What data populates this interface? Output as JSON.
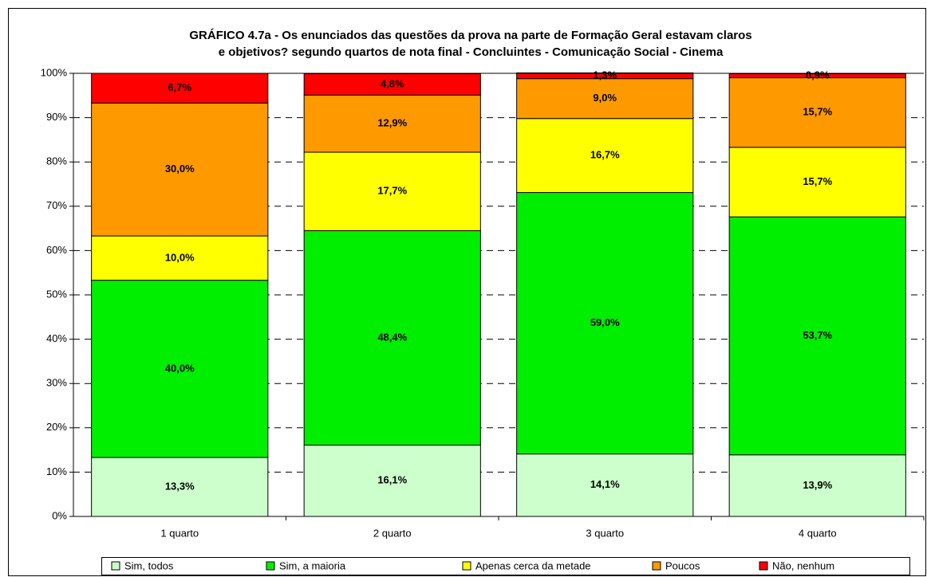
{
  "chart_data": {
    "type": "stacked_bar",
    "title": [
      "GRÁFICO 4.7a - Os enunciados das questões da prova na parte de Formação Geral estavam claros",
      "e objetivos? segundo quartos de nota final  - Concluintes - Comunicação Social - Cinema"
    ],
    "categories": [
      "1 quarto",
      "2 quarto",
      "3 quarto",
      "4 quarto"
    ],
    "series": [
      {
        "name": "Sim, todos",
        "color": "#ccffcc",
        "values": [
          13.3,
          16.1,
          14.1,
          13.9
        ],
        "value_labels": [
          "13,3%",
          "16,1%",
          "14,1%",
          "13,9%"
        ]
      },
      {
        "name": "Sim, a maioria",
        "color": "#00ee00",
        "values": [
          40.0,
          48.4,
          59.0,
          53.7
        ],
        "value_labels": [
          "40,0%",
          "48,4%",
          "59,0%",
          "53,7%"
        ]
      },
      {
        "name": "Apenas cerca da metade",
        "color": "#ffff00",
        "values": [
          10.0,
          17.7,
          16.7,
          15.7
        ],
        "value_labels": [
          "10,0%",
          "17,7%",
          "16,7%",
          "15,7%"
        ]
      },
      {
        "name": "Poucos",
        "color": "#ff9900",
        "values": [
          30.0,
          12.9,
          9.0,
          15.7
        ],
        "value_labels": [
          "30,0%",
          "12,9%",
          "9,0%",
          "15,7%"
        ]
      },
      {
        "name": "Não, nenhum",
        "color": "#ff0000",
        "values": [
          6.7,
          4.8,
          1.3,
          0.9
        ],
        "value_labels": [
          "6,7%",
          "4,8%",
          "1,3%",
          "0,9%"
        ]
      }
    ],
    "ylim": [
      0,
      100
    ],
    "yticks": [
      {
        "value": 0,
        "label": "0%"
      },
      {
        "value": 10,
        "label": "10%"
      },
      {
        "value": 20,
        "label": "20%"
      },
      {
        "value": 30,
        "label": "30%"
      },
      {
        "value": 40,
        "label": "40%"
      },
      {
        "value": 50,
        "label": "50%"
      },
      {
        "value": 60,
        "label": "60%"
      },
      {
        "value": 70,
        "label": "70%"
      },
      {
        "value": 80,
        "label": "80%"
      },
      {
        "value": 90,
        "label": "90%"
      },
      {
        "value": 100,
        "label": "100%"
      }
    ],
    "grid": true,
    "legend": "bottom"
  }
}
